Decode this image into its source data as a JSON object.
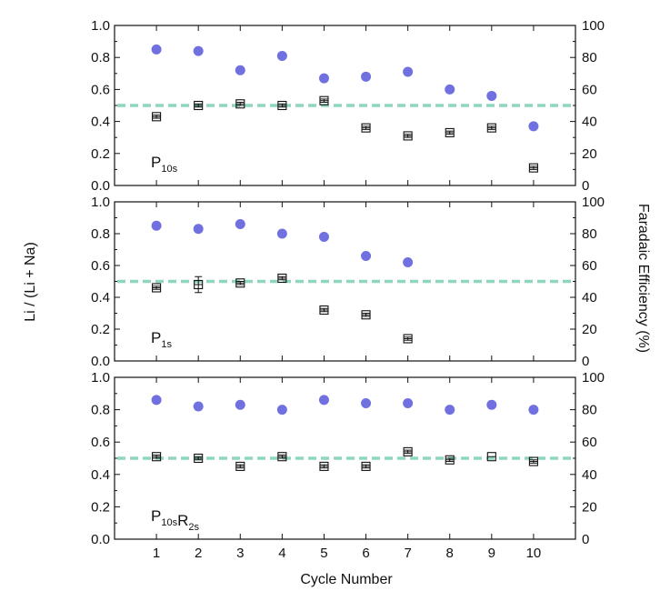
{
  "chart_data": {
    "type": "scatter",
    "xlabel": "Cycle Number",
    "ylabel_left": "Li / (Li + Na)",
    "ylabel_right": "Faradaic Efficiency (%)",
    "x_ticks": [
      1,
      2,
      3,
      4,
      5,
      6,
      7,
      8,
      9,
      10
    ],
    "xlim": [
      0,
      11
    ],
    "ylim_left": [
      0,
      1
    ],
    "left_ticks": [
      "0.0",
      "0.2",
      "0.4",
      "0.6",
      "0.8",
      "1.0"
    ],
    "ylim_right": [
      0,
      100
    ],
    "right_ticks": [
      "0",
      "20",
      "40",
      "60",
      "80",
      "100"
    ],
    "reference_line": 0.5,
    "colors": {
      "efficiency": "#7070e0",
      "reference": "#8fd6c0",
      "ratio": "#111111"
    },
    "panels": [
      {
        "label_main": "P",
        "label_sub": "10s",
        "label_main2": "",
        "label_sub2": "",
        "li_ratio": [
          {
            "x": 1,
            "y": 0.43,
            "err": 0.01
          },
          {
            "x": 2,
            "y": 0.5,
            "err": 0.01
          },
          {
            "x": 3,
            "y": 0.51,
            "err": 0.01
          },
          {
            "x": 4,
            "y": 0.5,
            "err": 0.01
          },
          {
            "x": 5,
            "y": 0.53,
            "err": 0.01
          },
          {
            "x": 6,
            "y": 0.36,
            "err": 0.01
          },
          {
            "x": 7,
            "y": 0.31,
            "err": 0.01
          },
          {
            "x": 8,
            "y": 0.33,
            "err": 0.01
          },
          {
            "x": 9,
            "y": 0.36,
            "err": 0.01
          },
          {
            "x": 10,
            "y": 0.11,
            "err": 0.01
          }
        ],
        "faradaic_efficiency": [
          {
            "x": 1,
            "y": 85
          },
          {
            "x": 2,
            "y": 84
          },
          {
            "x": 3,
            "y": 72
          },
          {
            "x": 4,
            "y": 81
          },
          {
            "x": 5,
            "y": 67
          },
          {
            "x": 6,
            "y": 68
          },
          {
            "x": 7,
            "y": 71
          },
          {
            "x": 8,
            "y": 60
          },
          {
            "x": 9,
            "y": 56
          },
          {
            "x": 10,
            "y": 37
          }
        ]
      },
      {
        "label_main": "P",
        "label_sub": "1s",
        "label_main2": "",
        "label_sub2": "",
        "li_ratio": [
          {
            "x": 1,
            "y": 0.46,
            "err": 0.01
          },
          {
            "x": 2,
            "y": 0.48,
            "err": 0.05
          },
          {
            "x": 3,
            "y": 0.49,
            "err": 0.01
          },
          {
            "x": 4,
            "y": 0.52,
            "err": 0.01
          },
          {
            "x": 5,
            "y": 0.32,
            "err": 0.01
          },
          {
            "x": 6,
            "y": 0.29,
            "err": 0.01
          },
          {
            "x": 7,
            "y": 0.14,
            "err": 0.01
          }
        ],
        "faradaic_efficiency": [
          {
            "x": 1,
            "y": 85
          },
          {
            "x": 2,
            "y": 83
          },
          {
            "x": 3,
            "y": 86
          },
          {
            "x": 4,
            "y": 80
          },
          {
            "x": 5,
            "y": 78
          },
          {
            "x": 6,
            "y": 66
          },
          {
            "x": 7,
            "y": 62
          }
        ]
      },
      {
        "label_main": "P",
        "label_sub": "10s",
        "label_main2": "R",
        "label_sub2": "2s",
        "li_ratio": [
          {
            "x": 1,
            "y": 0.51,
            "err": 0.01
          },
          {
            "x": 2,
            "y": 0.5,
            "err": 0.01
          },
          {
            "x": 3,
            "y": 0.45,
            "err": 0.01
          },
          {
            "x": 4,
            "y": 0.51,
            "err": 0.01
          },
          {
            "x": 5,
            "y": 0.45,
            "err": 0.01
          },
          {
            "x": 6,
            "y": 0.45,
            "err": 0.01
          },
          {
            "x": 7,
            "y": 0.54,
            "err": 0.01
          },
          {
            "x": 8,
            "y": 0.49,
            "err": 0.01
          },
          {
            "x": 9,
            "y": 0.51,
            "err": 0.0
          },
          {
            "x": 10,
            "y": 0.48,
            "err": 0.01
          }
        ],
        "faradaic_efficiency": [
          {
            "x": 1,
            "y": 86
          },
          {
            "x": 2,
            "y": 82
          },
          {
            "x": 3,
            "y": 83
          },
          {
            "x": 4,
            "y": 80
          },
          {
            "x": 5,
            "y": 86
          },
          {
            "x": 6,
            "y": 84
          },
          {
            "x": 7,
            "y": 84
          },
          {
            "x": 8,
            "y": 80
          },
          {
            "x": 9,
            "y": 83
          },
          {
            "x": 10,
            "y": 80
          }
        ]
      }
    ]
  }
}
